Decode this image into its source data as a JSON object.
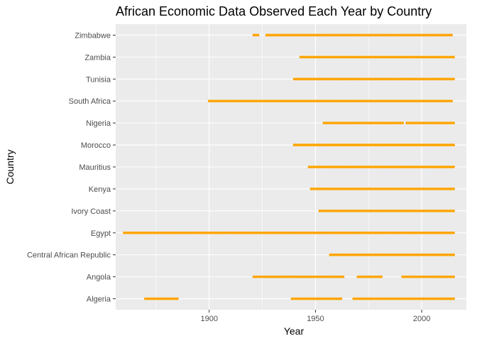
{
  "chart_data": {
    "type": "scatter",
    "title": "African Economic Data Observed Each Year by Country",
    "xlabel": "Year",
    "ylabel": "Country",
    "xlim": [
      1856,
      2021
    ],
    "x_ticks": [
      1900,
      1950,
      2000
    ],
    "categories": [
      "Algeria",
      "Angola",
      "Central African Republic",
      "Egypt",
      "Ivory Coast",
      "Kenya",
      "Mauritius",
      "Morocco",
      "Nigeria",
      "South Africa",
      "Tunisia",
      "Zambia",
      "Zimbabwe"
    ],
    "point_color": "#FFA500",
    "panel_color": "#EBEBEB",
    "grid": true,
    "series": [
      {
        "country": "Algeria",
        "year_ranges": [
          [
            1870,
            1885
          ],
          [
            1939,
            1962
          ],
          [
            1968,
            2015
          ]
        ]
      },
      {
        "country": "Angola",
        "year_ranges": [
          [
            1921,
            1963
          ],
          [
            1970,
            1981
          ],
          [
            1991,
            2015
          ]
        ]
      },
      {
        "country": "Central African Republic",
        "year_ranges": [
          [
            1957,
            2015
          ]
        ]
      },
      {
        "country": "Egypt",
        "year_ranges": [
          [
            1860,
            2015
          ]
        ]
      },
      {
        "country": "Ivory Coast",
        "year_ranges": [
          [
            1952,
            2015
          ]
        ]
      },
      {
        "country": "Kenya",
        "year_ranges": [
          [
            1948,
            2015
          ]
        ]
      },
      {
        "country": "Mauritius",
        "year_ranges": [
          [
            1947,
            2015
          ]
        ]
      },
      {
        "country": "Morocco",
        "year_ranges": [
          [
            1940,
            2015
          ]
        ]
      },
      {
        "country": "Nigeria",
        "year_ranges": [
          [
            1954,
            1991
          ],
          [
            1993,
            2015
          ]
        ]
      },
      {
        "country": "South Africa",
        "year_ranges": [
          [
            1900,
            2014
          ]
        ]
      },
      {
        "country": "Tunisia",
        "year_ranges": [
          [
            1940,
            2015
          ]
        ]
      },
      {
        "country": "Zambia",
        "year_ranges": [
          [
            1943,
            2015
          ]
        ]
      },
      {
        "country": "Zimbabwe",
        "year_ranges": [
          [
            1921,
            1923
          ],
          [
            1927,
            2014
          ]
        ]
      }
    ]
  }
}
